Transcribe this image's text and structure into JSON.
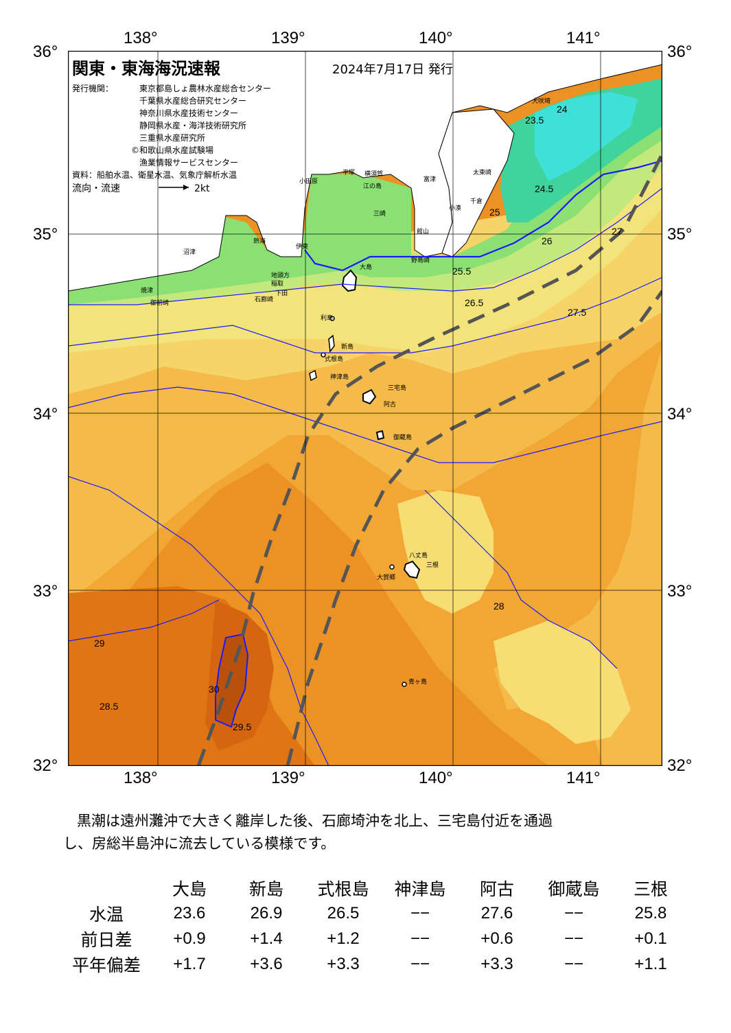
{
  "map": {
    "title": "関東・東海海況速報",
    "date": "2024年7月17日 発行",
    "issuers_label": "発行機関：",
    "issuers": [
      "東京都島しょ農林水産総合センター",
      "千葉県水産総合研究センター",
      "神奈川県水産技術センター",
      "静岡県水産・海洋技術研究所",
      "三重県水産研究所",
      "©和歌山県水産試験場",
      "漁業情報サービスセンター"
    ],
    "source": "資料：船舶水温、衛星水温、気象庁解析水温",
    "flow_label": "流向・流速",
    "flow_scale": "2kt",
    "lon_labels": [
      "138°",
      "139°",
      "140°",
      "141°"
    ],
    "lat_labels": [
      "36°",
      "35°",
      "34°",
      "33°",
      "32°"
    ],
    "place_names": [
      "犬吠埼",
      "太東崎",
      "小湊",
      "野島崎",
      "館山",
      "千倉",
      "富津",
      "横須賀",
      "平塚",
      "小田原",
      "江の島",
      "三崎",
      "熱海",
      "伊東",
      "沼津",
      "焼津",
      "御前崎",
      "地頭方",
      "稲取",
      "下田",
      "石廊崎",
      "大島",
      "利島",
      "新島",
      "式根島",
      "神津島",
      "三宅島",
      "阿古",
      "御蔵島",
      "八丈島",
      "三根",
      "大賀郷",
      "青ヶ島"
    ],
    "isotherm_labels": [
      "23.5",
      "24",
      "24.5",
      "25",
      "25.5",
      "26",
      "26.5",
      "27",
      "27.5",
      "28",
      "28.5",
      "29",
      "29.5",
      "30"
    ],
    "legend_colors": {
      "sst_23_5": "#3fe0d8",
      "sst_24": "#35d29a",
      "sst_25": "#7fe070",
      "sst_26": "#b8e878",
      "sst_26_5": "#f2e47a",
      "sst_27": "#f3c95a",
      "sst_27_5": "#f2b13a",
      "sst_28": "#ee9f2e",
      "sst_28_5": "#ec9225",
      "sst_29": "#e07516",
      "sst_29_5": "#d5660f",
      "sst_30": "#b9510c",
      "land": "#ffffff",
      "isoline": "#1a1aff",
      "kuroshio_axis": "#555555"
    }
  },
  "description": {
    "line1": "黒潮は遠州灘沖で大きく離岸した後、石廊埼沖を北上、三宅島付近を通過",
    "line2": "し、房総半島沖に流去している模様です。"
  },
  "stats": {
    "stations": [
      "大島",
      "新島",
      "式根島",
      "神津島",
      "阿古",
      "御蔵島",
      "三根"
    ],
    "rows": [
      {
        "label": "水温",
        "values": [
          "23.6",
          "26.9",
          "26.5",
          "−−",
          "27.6",
          "−−",
          "25.8"
        ]
      },
      {
        "label": "前日差",
        "values": [
          "+0.9",
          "+1.4",
          "+1.2",
          "−−",
          "+0.6",
          "−−",
          "+0.1"
        ]
      },
      {
        "label": "平年偏差",
        "values": [
          "+1.7",
          "+3.6",
          "+3.3",
          "−−",
          "+3.3",
          "−−",
          "+1.1"
        ]
      }
    ]
  }
}
